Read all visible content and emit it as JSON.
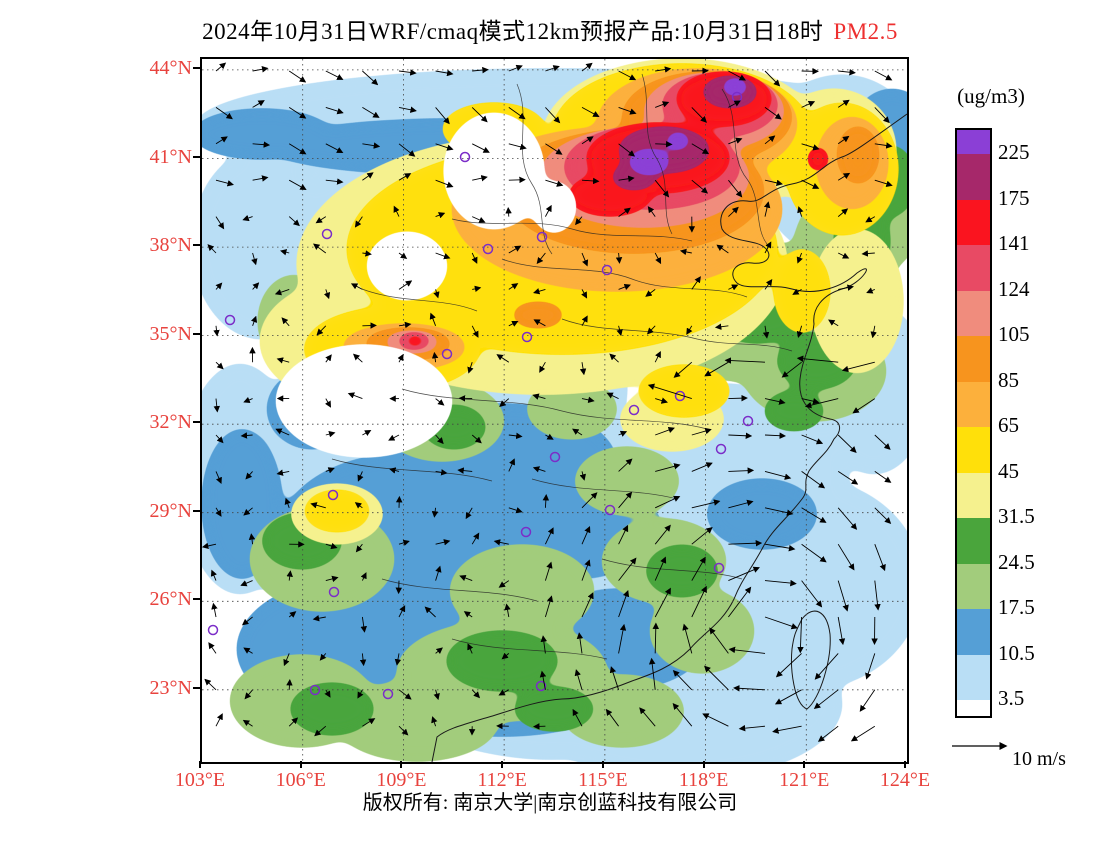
{
  "title": {
    "text": "2024年10月31日WRF/cmaq模式12km预报产品:10月31日18时",
    "species": "PM2.5"
  },
  "map": {
    "lat_ticks": [
      "44°N",
      "41°N",
      "38°N",
      "35°N",
      "32°N",
      "29°N",
      "26°N",
      "23°N"
    ],
    "lon_ticks": [
      "103°E",
      "106°E",
      "109°E",
      "112°E",
      "115°E",
      "118°E",
      "121°E",
      "124°E"
    ]
  },
  "colorbar": {
    "unit": "(ug/m3)",
    "tick_labels": [
      "225",
      "175",
      "141",
      "124",
      "105",
      "85",
      "65",
      "45",
      "31.5",
      "24.5",
      "17.5",
      "10.5",
      "3.5"
    ],
    "band_colors_top_to_bottom": [
      "#8B3FD6",
      "#A6286A",
      "#FA141F",
      "#E84A64",
      "#F08C7D",
      "#F7941E",
      "#FCB03C",
      "#FFE00A",
      "#F5F18E",
      "#4AA53C",
      "#A2CC7C",
      "#559FD6",
      "#B9DEF5",
      "#FFFFFF"
    ]
  },
  "wind_legend": {
    "label": "10 m/s"
  },
  "footer": {
    "text": "版权所有: 南京大学|南京创蓝科技有限公司"
  },
  "colors": {
    "axis_label_red": "#E8433E",
    "species_red": "#ED2F2F",
    "station_purple": "#7B2DC8"
  }
}
